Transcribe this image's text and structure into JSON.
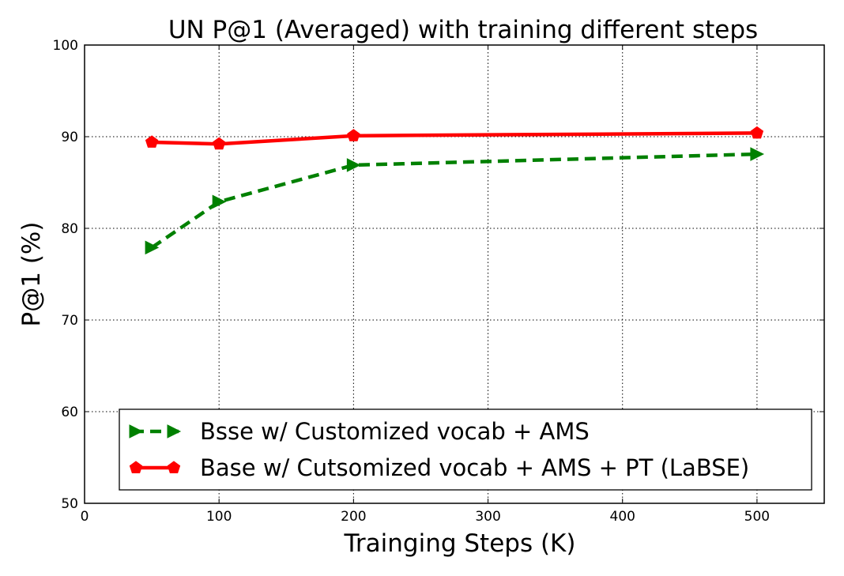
{
  "chart_data": {
    "type": "line",
    "title": "UN P@1 (Averaged) with training different steps",
    "xlabel": "Trainging Steps (K)",
    "ylabel": "P@1 (%)",
    "xlim": [
      0,
      550
    ],
    "ylim": [
      50,
      100
    ],
    "xticks": [
      0,
      100,
      200,
      300,
      400,
      500
    ],
    "yticks": [
      50,
      60,
      70,
      80,
      90,
      100
    ],
    "grid": true,
    "legend_position": "lower-right",
    "series": [
      {
        "name": "Bsse w/ Customized vocab + AMS",
        "color": "#008000",
        "line_style": "dashed",
        "marker": "triangle-right",
        "x": [
          50,
          100,
          200,
          500
        ],
        "y": [
          77.9,
          82.9,
          86.9,
          88.1
        ]
      },
      {
        "name": "Base w/ Cutsomized vocab + AMS + PT (LaBSE)",
        "color": "#ff0000",
        "line_style": "solid",
        "marker": "pentagon",
        "x": [
          50,
          100,
          200,
          500
        ],
        "y": [
          89.4,
          89.2,
          90.1,
          90.4
        ]
      }
    ]
  }
}
